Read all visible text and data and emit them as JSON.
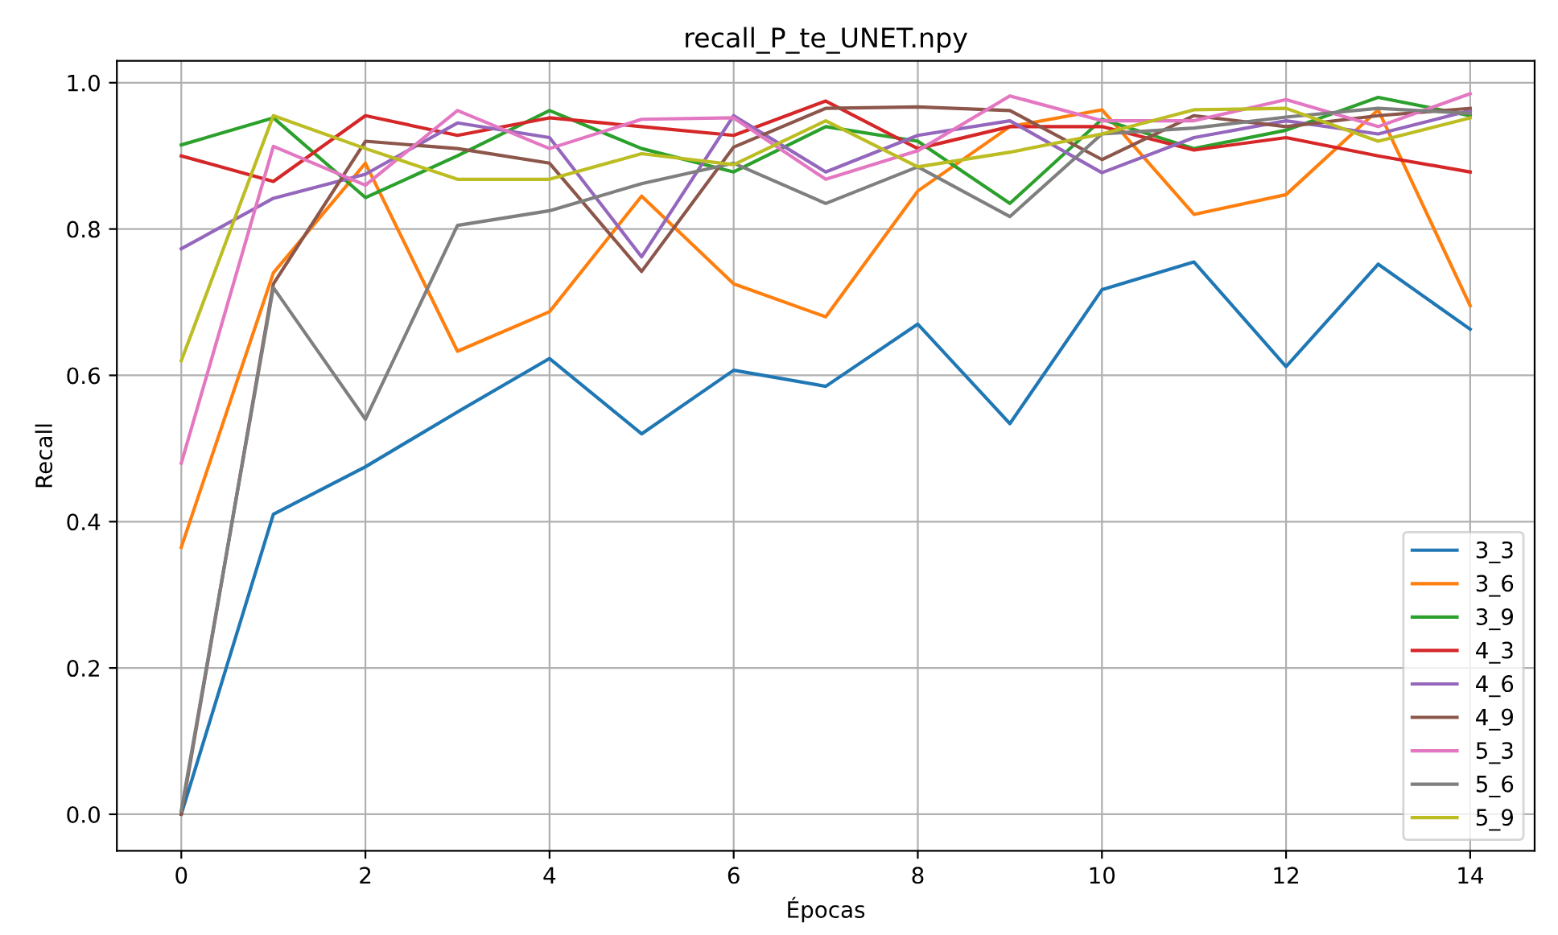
{
  "chart_data": {
    "type": "line",
    "title": "recall_P_te_UNET.npy",
    "xlabel": "Épocas",
    "ylabel": "Recall",
    "x": [
      0,
      1,
      2,
      3,
      4,
      5,
      6,
      7,
      8,
      9,
      10,
      11,
      12,
      13,
      14
    ],
    "xlim": [
      -0.7,
      14.7
    ],
    "xticks": [
      0,
      2,
      4,
      6,
      8,
      10,
      12,
      14
    ],
    "ylim": [
      -0.05,
      1.03
    ],
    "yticks": [
      {
        "value": 0.0,
        "label": "0.0"
      },
      {
        "value": 0.2,
        "label": "0.2"
      },
      {
        "value": 0.4,
        "label": "0.4"
      },
      {
        "value": 0.6,
        "label": "0.6"
      },
      {
        "value": 0.8,
        "label": "0.8"
      },
      {
        "value": 1.0,
        "label": "1.0"
      }
    ],
    "grid": true,
    "legend": "bottom right",
    "marker": "none",
    "line_style": "solid",
    "series": [
      {
        "name": "3_3",
        "color": "#1f77b4",
        "values": [
          0.0,
          0.41,
          0.475,
          0.55,
          0.623,
          0.52,
          0.607,
          0.585,
          0.67,
          0.534,
          0.717,
          0.755,
          0.612,
          0.752,
          0.663
        ]
      },
      {
        "name": "3_6",
        "color": "#ff7f0e",
        "values": [
          0.365,
          0.74,
          0.89,
          0.633,
          0.687,
          0.845,
          0.725,
          0.68,
          0.852,
          0.94,
          0.963,
          0.82,
          0.847,
          0.963,
          0.695
        ]
      },
      {
        "name": "3_9",
        "color": "#2ca02c",
        "values": [
          0.915,
          0.952,
          0.843,
          0.9,
          0.962,
          0.91,
          0.878,
          0.94,
          0.92,
          0.835,
          0.95,
          0.91,
          0.935,
          0.98,
          0.955
        ]
      },
      {
        "name": "4_3",
        "color": "#d62728",
        "values": [
          0.9,
          0.865,
          0.955,
          0.928,
          0.952,
          0.94,
          0.928,
          0.975,
          0.91,
          0.94,
          0.94,
          0.908,
          0.925,
          0.9,
          0.878
        ]
      },
      {
        "name": "4_6",
        "color": "#9467bd",
        "values": [
          0.773,
          0.842,
          0.875,
          0.945,
          0.925,
          0.762,
          0.955,
          0.878,
          0.928,
          0.948,
          0.877,
          0.925,
          0.948,
          0.93,
          0.962
        ]
      },
      {
        "name": "4_9",
        "color": "#8c564b",
        "values": [
          0.0,
          0.725,
          0.92,
          0.91,
          0.89,
          0.742,
          0.912,
          0.965,
          0.967,
          0.962,
          0.895,
          0.955,
          0.94,
          0.955,
          0.965
        ]
      },
      {
        "name": "5_3",
        "color": "#e377c2",
        "values": [
          0.48,
          0.913,
          0.86,
          0.962,
          0.91,
          0.95,
          0.952,
          0.868,
          0.907,
          0.982,
          0.948,
          0.948,
          0.977,
          0.94,
          0.985
        ]
      },
      {
        "name": "5_6",
        "color": "#7f7f7f",
        "values": [
          0.005,
          0.72,
          0.54,
          0.805,
          0.825,
          0.862,
          0.89,
          0.835,
          0.885,
          0.817,
          0.93,
          0.938,
          0.953,
          0.965,
          0.958
        ]
      },
      {
        "name": "5_9",
        "color": "#bcbd22",
        "values": [
          0.62,
          0.955,
          0.91,
          0.868,
          0.868,
          0.903,
          0.888,
          0.948,
          0.885,
          0.905,
          0.93,
          0.963,
          0.965,
          0.92,
          0.952
        ]
      }
    ]
  }
}
